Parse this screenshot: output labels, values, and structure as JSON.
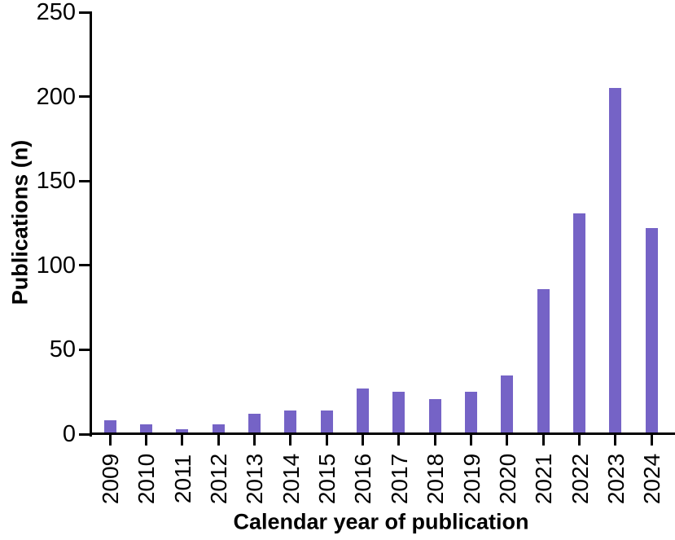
{
  "chart_data": {
    "type": "bar",
    "title": "",
    "xlabel": "Calendar year of publication",
    "ylabel": "Publications (n)",
    "categories": [
      "2009",
      "2010",
      "2011",
      "2012",
      "2013",
      "2014",
      "2015",
      "2016",
      "2017",
      "2018",
      "2019",
      "2020",
      "2021",
      "2022",
      "2023",
      "2024"
    ],
    "values": [
      7,
      5,
      2,
      5,
      11,
      13,
      13,
      26,
      24,
      20,
      24,
      34,
      85,
      130,
      204,
      121
    ],
    "ylim": [
      0,
      250
    ],
    "yticks": [
      0,
      50,
      100,
      150,
      200,
      250
    ],
    "grid": false,
    "legend": null,
    "bar_color": "#7563c6",
    "axis_color": "#000000",
    "text_color": "#000000"
  }
}
